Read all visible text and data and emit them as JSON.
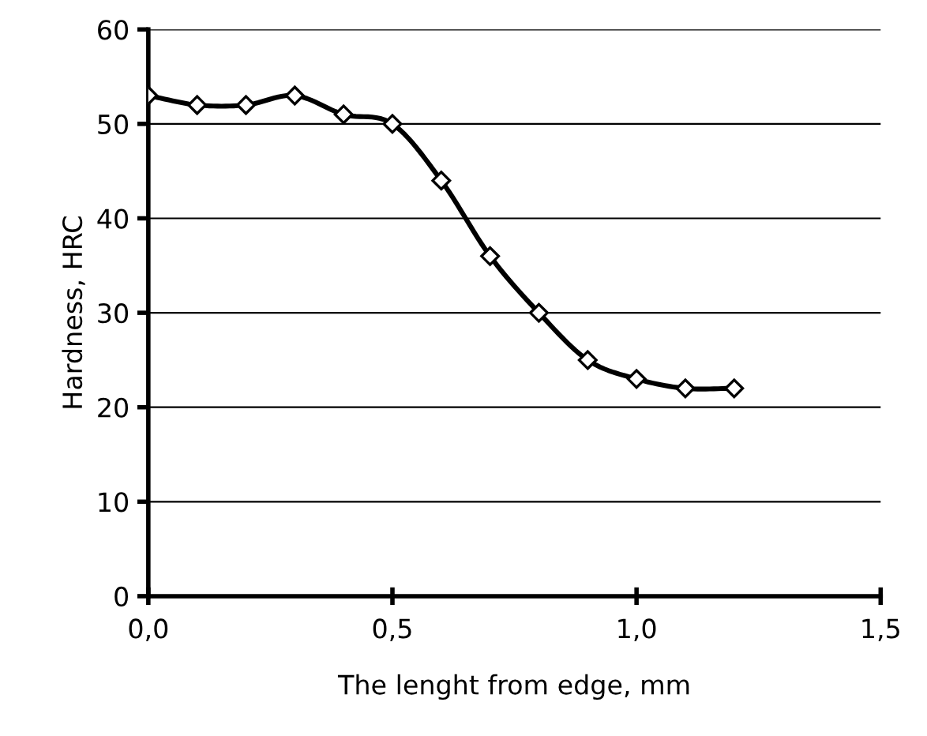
{
  "chart_data": {
    "type": "line",
    "xlabel": "The lenght from edge, mm",
    "ylabel": "Hardness, HRC",
    "x": [
      0,
      0.1,
      0.2,
      0.3,
      0.4,
      0.5,
      0.6,
      0.7,
      0.8,
      0.9,
      1.0,
      1.1,
      1.2
    ],
    "series": [
      {
        "color": "#000000",
        "values": [
          53,
          52,
          52,
          53,
          51,
          50,
          44,
          36,
          30,
          25,
          23,
          22,
          22
        ]
      }
    ],
    "xlim": [
      0,
      1.5
    ],
    "xticks": [
      {
        "value": 0,
        "label": "0,0"
      },
      {
        "value": 0.5,
        "label": "0,5"
      },
      {
        "value": 1.0,
        "label": "1,0"
      },
      {
        "value": 1.5,
        "label": "1,5"
      }
    ],
    "ylim": [
      0,
      60
    ],
    "yticks": [
      0,
      10,
      20,
      30,
      40,
      50,
      60
    ],
    "grid": "y",
    "marker": "diamond",
    "line_style": "solid"
  }
}
